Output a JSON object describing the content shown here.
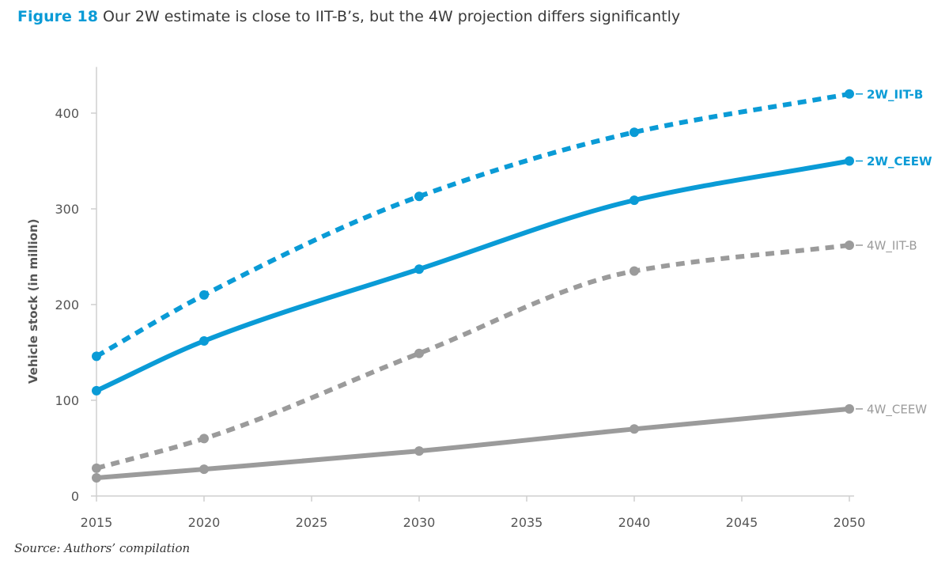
{
  "figure": {
    "label": "Figure 18",
    "title": "Our 2W estimate is close to IIT-B’s, but the 4W projection differs significantly",
    "source": "Source: Authors’ compilation"
  },
  "chart_data": {
    "type": "line",
    "title": "Our 2W estimate is close to IIT-B’s, but the 4W projection differs significantly",
    "xlabel": "",
    "ylabel": "Vehicle stock (in million)",
    "xlim": [
      2015,
      2050
    ],
    "ylim": [
      0,
      440
    ],
    "x_ticks": [
      2015,
      2020,
      2025,
      2030,
      2035,
      2040,
      2045,
      2050
    ],
    "y_ticks": [
      0,
      100,
      200,
      300,
      400
    ],
    "grid": false,
    "legend": "end-of-line labels",
    "series": [
      {
        "name": "2W_IIT-B",
        "color": "#0a9bd6",
        "style": "dashed",
        "label_weight": "bold",
        "x": [
          2015,
          2020,
          2030,
          2040,
          2050
        ],
        "values": [
          146,
          210,
          313,
          380,
          420
        ]
      },
      {
        "name": "2W_CEEW",
        "color": "#0a9bd6",
        "style": "solid",
        "label_weight": "bold",
        "x": [
          2015,
          2020,
          2030,
          2040,
          2050
        ],
        "values": [
          110,
          162,
          237,
          309,
          350
        ]
      },
      {
        "name": "4W_IIT-B",
        "color": "#9b9b9b",
        "style": "dashed",
        "label_weight": "normal",
        "x": [
          2015,
          2020,
          2030,
          2040,
          2050
        ],
        "values": [
          29,
          60,
          149,
          235,
          262
        ]
      },
      {
        "name": "4W_CEEW",
        "color": "#9b9b9b",
        "style": "solid",
        "label_weight": "normal",
        "x": [
          2015,
          2020,
          2030,
          2040,
          2050
        ],
        "values": [
          19,
          28,
          47,
          70,
          91
        ]
      }
    ]
  }
}
